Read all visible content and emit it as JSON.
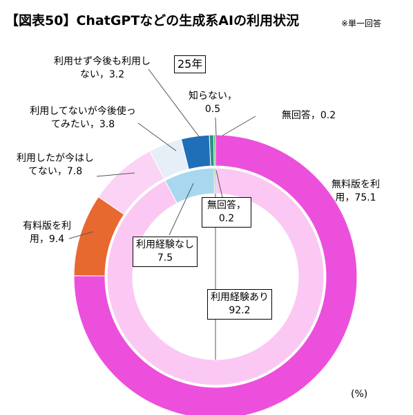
{
  "chart_data": {
    "type": "donut",
    "title": "【図表50】ChatGPTなどの生成系AIの利用状況",
    "note": "※単一回答",
    "year": "25年",
    "unit": "(%)",
    "rings": [
      {
        "categories": [
          "無料版を利用，",
          "有料版を利用，",
          "利用したが今はしてない，",
          "利用してないが今後使ってみたい，",
          "利用せず今後も利用しない，",
          "知らない，",
          "無回答，"
        ],
        "values": [
          75.1,
          9.4,
          7.8,
          3.8,
          3.2,
          0.5,
          0.2
        ],
        "colors": [
          "#ec4fdc",
          "#e8692f",
          "#fbd3f5",
          "#e6eef7",
          "#1f6fb8",
          "#2f8f8a",
          "#4caf50"
        ]
      },
      {
        "categories": [
          "利用経験あり",
          "利用経験なし",
          "無回答，"
        ],
        "values": [
          92.2,
          7.5,
          0.2
        ],
        "colors": [
          "#fbc8f3",
          "#a9d7ef",
          "#4caf50"
        ]
      }
    ]
  }
}
